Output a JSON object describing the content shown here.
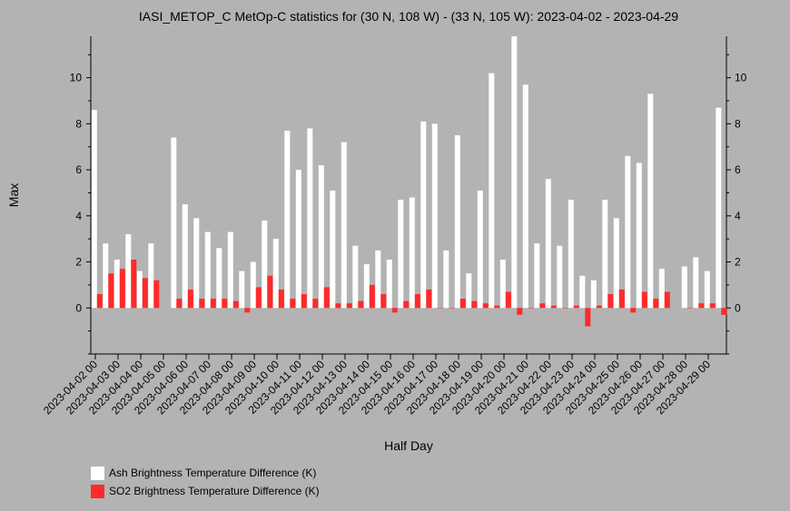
{
  "chart_data": {
    "type": "bar",
    "title": "IASI_METOP_C MetOp-C statistics for (30 N, 108 W) - (33 N, 105 W): 2023-04-02 - 2023-04-29",
    "xlabel": "Half Day",
    "ylabel": "Max",
    "ylim": [
      -2,
      11.8
    ],
    "yticks": [
      0,
      2,
      4,
      6,
      8,
      10
    ],
    "x_tick_labels": [
      "2023-04-02 00",
      "2023-04-03 00",
      "2023-04-04 00",
      "2023-04-05 00",
      "2023-04-06 00",
      "2023-04-07 00",
      "2023-04-08 00",
      "2023-04-09 00",
      "2023-04-10 00",
      "2023-04-11 00",
      "2023-04-12 00",
      "2023-04-13 00",
      "2023-04-14 00",
      "2023-04-15 00",
      "2023-04-16 00",
      "2023-04-17 00",
      "2023-04-18 00",
      "2023-04-19 00",
      "2023-04-20 00",
      "2023-04-21 00",
      "2023-04-22 00",
      "2023-04-23 00",
      "2023-04-24 00",
      "2023-04-25 00",
      "2023-04-26 00",
      "2023-04-27 00",
      "2023-04-28 00",
      "2023-04-29 00"
    ],
    "series": [
      {
        "name": "Ash Brightness Temperature Difference (K)",
        "color": "#ffffff",
        "values": [
          8.6,
          2.8,
          2.1,
          3.2,
          1.6,
          2.8,
          null,
          7.4,
          4.5,
          3.9,
          3.3,
          2.6,
          3.3,
          1.6,
          2.0,
          3.8,
          3.0,
          7.7,
          6.0,
          7.8,
          6.2,
          5.1,
          7.2,
          2.7,
          1.9,
          2.5,
          2.1,
          4.7,
          4.8,
          8.1,
          8.0,
          2.5,
          7.5,
          1.5,
          5.1,
          10.2,
          2.1,
          11.8,
          9.7,
          2.8,
          5.6,
          2.7,
          4.7,
          1.4,
          1.2,
          4.7,
          3.9,
          6.6,
          6.3,
          9.3,
          1.7,
          null,
          1.8,
          2.2,
          1.6,
          8.7
        ]
      },
      {
        "name": "SO2 Brightness Temperature Difference (K)",
        "color": "#ff2a2a",
        "values": [
          0.6,
          1.5,
          1.7,
          2.1,
          1.3,
          1.2,
          null,
          0.4,
          0.8,
          0.4,
          0.4,
          0.4,
          0.3,
          -0.2,
          0.9,
          1.4,
          0.8,
          0.4,
          0.6,
          0.4,
          0.9,
          0.2,
          0.2,
          0.3,
          1.0,
          0.6,
          -0.2,
          0.3,
          0.6,
          0.8,
          0.0,
          0.0,
          0.4,
          0.3,
          0.2,
          0.1,
          0.7,
          -0.3,
          0.0,
          0.2,
          0.1,
          0.0,
          0.1,
          -0.8,
          0.1,
          0.6,
          0.8,
          -0.2,
          0.7,
          0.4,
          0.7,
          null,
          0.0,
          0.2,
          0.2,
          -0.3
        ]
      }
    ],
    "legend_position": "bottom-left",
    "grid": false
  }
}
